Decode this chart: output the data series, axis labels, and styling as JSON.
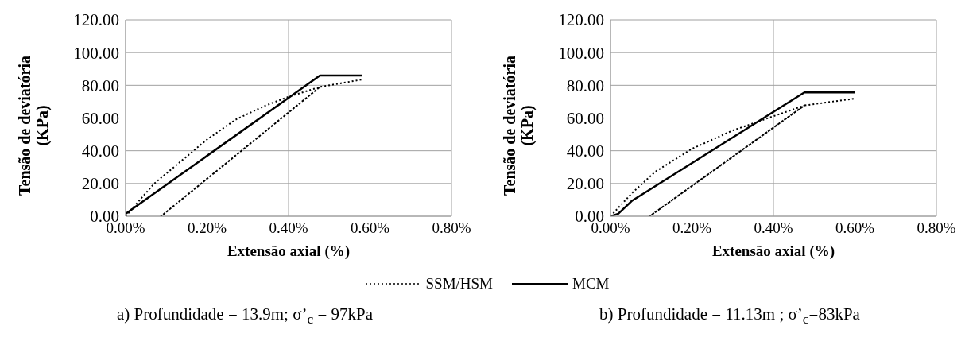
{
  "chart_data": [
    {
      "type": "line",
      "xlabel": "Extensão axial (%)",
      "ylabel": "Tensão de deviatória (KPa)",
      "xlim": [
        0,
        0.8
      ],
      "ylim": [
        0,
        120
      ],
      "xticks": [
        {
          "value": 0,
          "label": "0.00%"
        },
        {
          "value": 0.2,
          "label": "0.20%"
        },
        {
          "value": 0.4,
          "label": "0.40%"
        },
        {
          "value": 0.6,
          "label": "0.60%"
        },
        {
          "value": 0.8,
          "label": "0.80%"
        }
      ],
      "yticks": [
        {
          "value": 0,
          "label": "0.00"
        },
        {
          "value": 20,
          "label": "20.00"
        },
        {
          "value": 40,
          "label": "40.00"
        },
        {
          "value": 60,
          "label": "60.00"
        },
        {
          "value": 80,
          "label": "80.00"
        },
        {
          "value": 100,
          "label": "100.00"
        },
        {
          "value": 120,
          "label": "120.00"
        }
      ],
      "grid": true,
      "legend": "bottom",
      "series": [
        {
          "name": "SSM/HSM",
          "color": "#000000",
          "line_style": "dotted",
          "x": [
            0,
            0.07,
            0.2,
            0.27,
            0.34,
            0.4,
            0.477,
            0.087,
            0.477,
            0.58
          ],
          "values": [
            0,
            19.9,
            46.9,
            59,
            67.3,
            73,
            79,
            0,
            79,
            83.5
          ]
        },
        {
          "name": "MCM",
          "color": "#000000",
          "line_style": "solid",
          "x": [
            0,
            0.477,
            0.58
          ],
          "values": [
            1.5,
            86,
            86
          ]
        }
      ],
      "annotations": [
        "a) Profundidade = 13.9m; σ’$_{c}$ = 97kPa"
      ]
    },
    {
      "type": "line",
      "xlabel": "Extensão axial (%)",
      "ylabel": "Tensão de deviatória (KPa)",
      "xlim": [
        0,
        0.8
      ],
      "ylim": [
        0,
        120
      ],
      "xticks": [
        {
          "value": 0,
          "label": "0.00%"
        },
        {
          "value": 0.2,
          "label": "0.20%"
        },
        {
          "value": 0.4,
          "label": "0.40%"
        },
        {
          "value": 0.6,
          "label": "0.60%"
        },
        {
          "value": 0.8,
          "label": "0.80%"
        }
      ],
      "yticks": [
        {
          "value": 0,
          "label": "0.00"
        },
        {
          "value": 20,
          "label": "20.00"
        },
        {
          "value": 40,
          "label": "40.00"
        },
        {
          "value": 60,
          "label": "60.00"
        },
        {
          "value": 80,
          "label": "80.00"
        },
        {
          "value": 100,
          "label": "100.00"
        },
        {
          "value": 120,
          "label": "120.00"
        }
      ],
      "grid": true,
      "legend": "bottom",
      "series": [
        {
          "color": "#000000",
          "line_style": "dotted",
          "x": [
            0,
            0.053,
            0.11,
            0.2,
            0.3,
            0.4,
            0.476,
            0.096,
            0.476,
            0.6
          ],
          "values": [
            0,
            14.2,
            27.2,
            41.2,
            52.4,
            61.1,
            67.7,
            0,
            67.7,
            71.9
          ]
        },
        {
          "color": "#000000",
          "line_style": "solid",
          "x": [
            0,
            0.019,
            0.053,
            0.476,
            0.6
          ],
          "values": [
            0,
            1.5,
            9.5,
            75.7,
            75.7
          ]
        }
      ],
      "annotations": [
        "b) Profundidade = 11.13m ; σ’$_{c}$=83kPa"
      ]
    }
  ]
}
